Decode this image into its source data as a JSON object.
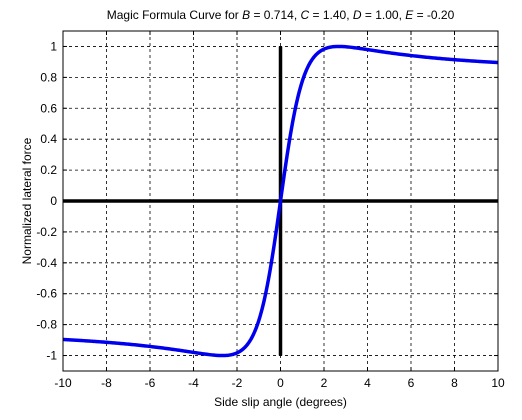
{
  "chart_data": {
    "type": "line",
    "title_parts": [
      {
        "text": "Magic Formula Curve for ",
        "italic": false
      },
      {
        "text": "B",
        "italic": true
      },
      {
        "text": " = 0.714, ",
        "italic": false
      },
      {
        "text": "C",
        "italic": true
      },
      {
        "text": " = 1.40, ",
        "italic": false
      },
      {
        "text": "D",
        "italic": true
      },
      {
        "text": " = 1.00, ",
        "italic": false
      },
      {
        "text": "E",
        "italic": true
      },
      {
        "text": " = -0.20",
        "italic": false
      }
    ],
    "xlabel": "Side slip angle (degrees)",
    "ylabel": "Normalized lateral force",
    "xlim": [
      -10,
      10
    ],
    "ylim": [
      -1.1,
      1.1
    ],
    "xticks": [
      -10,
      -8,
      -6,
      -4,
      -2,
      0,
      2,
      4,
      6,
      8,
      10
    ],
    "yticks": [
      -1,
      -0.8,
      -0.6,
      -0.4,
      -0.2,
      0,
      0.2,
      0.4,
      0.6,
      0.8,
      1
    ],
    "xtick_labels": [
      "-10",
      "-8",
      "-6",
      "-4",
      "-2",
      "0",
      "2",
      "4",
      "6",
      "8",
      "10"
    ],
    "ytick_labels": [
      "-1",
      "-0.8",
      "-0.6",
      "-0.4",
      "-0.2",
      "0",
      "0.2",
      "0.4",
      "0.6",
      "0.8",
      "1"
    ],
    "grid": true,
    "grid_style": "dashed",
    "reference_lines": [
      {
        "orientation": "horizontal",
        "value": 0,
        "from": -10,
        "to": 10
      },
      {
        "orientation": "vertical",
        "value": 0,
        "from": -1,
        "to": 1
      }
    ],
    "series": [
      {
        "color": "#0000ee",
        "formula": {
          "B": 0.714,
          "C": 1.4,
          "D": 1.0,
          "E": -0.2
        },
        "x": [
          -10,
          -9,
          -8,
          -7,
          -6,
          -5,
          -4,
          -3.5,
          -3,
          -2.5,
          -2,
          -1.5,
          -1,
          -0.75,
          -0.5,
          -0.25,
          0,
          0.25,
          0.5,
          0.75,
          1,
          1.5,
          2,
          2.5,
          3,
          3.5,
          4,
          5,
          6,
          7,
          8,
          9,
          10
        ],
        "y": [
          -0.895,
          -0.907,
          -0.92,
          -0.935,
          -0.952,
          -0.97,
          -0.987,
          -0.995,
          -0.999,
          -0.999,
          -0.982,
          -0.917,
          -0.759,
          -0.623,
          -0.45,
          -0.238,
          0,
          0.238,
          0.45,
          0.623,
          0.759,
          0.917,
          0.982,
          0.999,
          0.999,
          0.995,
          0.987,
          0.97,
          0.952,
          0.935,
          0.92,
          0.907,
          0.895
        ]
      }
    ],
    "style": {
      "background": "#ffffff",
      "series_color": "#0000ee",
      "reference_color": "#000000",
      "grid_color": "#000000"
    }
  }
}
